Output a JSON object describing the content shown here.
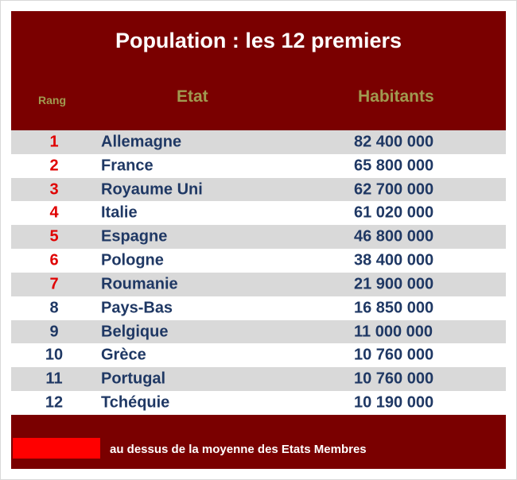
{
  "title": "Population : les 12 premiers",
  "headers": {
    "rank": "Rang",
    "state": "Etat",
    "population": "Habitants"
  },
  "rows": [
    {
      "rank": "1",
      "state": "Allemagne",
      "population": "82 400 000",
      "above_average": true
    },
    {
      "rank": "2",
      "state": "France",
      "population": "65 800 000",
      "above_average": true
    },
    {
      "rank": "3",
      "state": "Royaume Uni",
      "population": "62 700 000",
      "above_average": true
    },
    {
      "rank": "4",
      "state": "Italie",
      "population": "61 020 000",
      "above_average": true
    },
    {
      "rank": "5",
      "state": "Espagne",
      "population": "46 800 000",
      "above_average": true
    },
    {
      "rank": "6",
      "state": "Pologne",
      "population": "38 400 000",
      "above_average": true
    },
    {
      "rank": "7",
      "state": "Roumanie",
      "population": "21 900 000",
      "above_average": true
    },
    {
      "rank": "8",
      "state": "Pays-Bas",
      "population": "16 850 000",
      "above_average": false
    },
    {
      "rank": "9",
      "state": "Belgique",
      "population": "11 000 000",
      "above_average": false
    },
    {
      "rank": "10",
      "state": "Grèce",
      "population": "10 760 000",
      "above_average": false
    },
    {
      "rank": "11",
      "state": "Portugal",
      "population": "10 760 000",
      "above_average": false
    },
    {
      "rank": "12",
      "state": "Tchéquie",
      "population": "10 190 000",
      "above_average": false
    }
  ],
  "legend": {
    "text": "au dessus de la moyenne des Etats Membres",
    "color": "#ff0000"
  },
  "colors": {
    "panel": "#7a0000",
    "header_text": "#a09a50",
    "row_text": "#1f3864",
    "rank_highlight": "#e00000",
    "stripe": "#d9d9d9"
  }
}
